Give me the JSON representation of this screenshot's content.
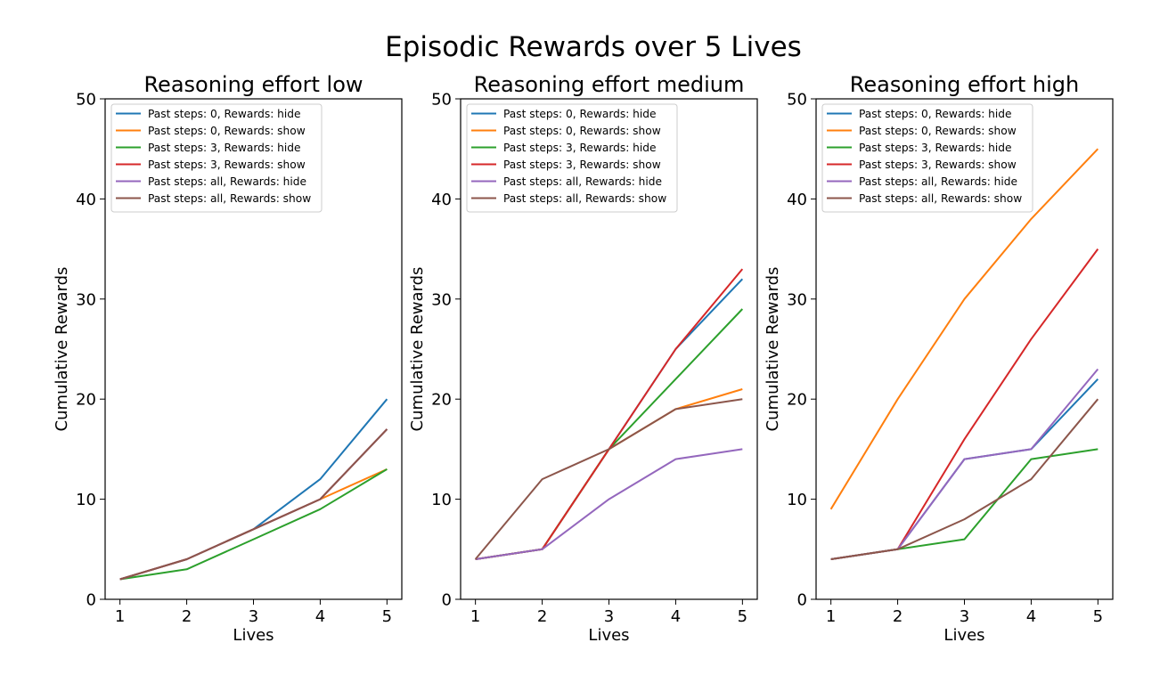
{
  "figure": {
    "suptitle": "Episodic Rewards over 5 Lives"
  },
  "legend_placement": "top-left",
  "series_colors": [
    "#1f77b4",
    "#ff7f0e",
    "#2ca02c",
    "#d62728",
    "#9467bd",
    "#8c564b"
  ],
  "chart_data": [
    {
      "type": "line",
      "title": "Reasoning effort low",
      "xlabel": "Lives",
      "ylabel": "Cumulative Rewards",
      "x": [
        1,
        2,
        3,
        4,
        5
      ],
      "xticks": [
        "1",
        "2",
        "3",
        "4",
        "5"
      ],
      "yticks": [
        "0",
        "10",
        "20",
        "30",
        "40",
        "50"
      ],
      "ylim": [
        0,
        50
      ],
      "grid": false,
      "legend": "top-left",
      "series": [
        {
          "name": "Past steps: 0, Rewards: hide",
          "values": [
            2,
            4,
            7,
            12,
            20
          ]
        },
        {
          "name": "Past steps: 0, Rewards: show",
          "values": [
            2,
            4,
            7,
            10,
            13
          ]
        },
        {
          "name": "Past steps: 3, Rewards: hide",
          "values": [
            2,
            3,
            6,
            9,
            13
          ]
        },
        {
          "name": "Past steps: 3, Rewards: show",
          "values": [
            2,
            4,
            7,
            10,
            17
          ]
        },
        {
          "name": "Past steps: all, Rewards: hide",
          "values": [
            2,
            4,
            7,
            10,
            17
          ]
        },
        {
          "name": "Past steps: all, Rewards: show",
          "values": [
            2,
            4,
            7,
            10,
            17
          ]
        }
      ]
    },
    {
      "type": "line",
      "title": "Reasoning effort medium",
      "xlabel": "Lives",
      "ylabel": "Cumulative Rewards",
      "x": [
        1,
        2,
        3,
        4,
        5
      ],
      "xticks": [
        "1",
        "2",
        "3",
        "4",
        "5"
      ],
      "yticks": [
        "0",
        "10",
        "20",
        "30",
        "40",
        "50"
      ],
      "ylim": [
        0,
        50
      ],
      "grid": false,
      "legend": "top-left",
      "series": [
        {
          "name": "Past steps: 0, Rewards: hide",
          "values": [
            4,
            5,
            15,
            25,
            32
          ]
        },
        {
          "name": "Past steps: 0, Rewards: show",
          "values": [
            4,
            5,
            15,
            19,
            21
          ]
        },
        {
          "name": "Past steps: 3, Rewards: hide",
          "values": [
            4,
            5,
            15,
            22,
            29
          ]
        },
        {
          "name": "Past steps: 3, Rewards: show",
          "values": [
            4,
            5,
            15,
            25,
            33
          ]
        },
        {
          "name": "Past steps: all, Rewards: hide",
          "values": [
            4,
            5,
            10,
            14,
            15
          ]
        },
        {
          "name": "Past steps: all, Rewards: show",
          "values": [
            4,
            12,
            15,
            19,
            20
          ]
        }
      ]
    },
    {
      "type": "line",
      "title": "Reasoning effort high",
      "xlabel": "Lives",
      "ylabel": "Cumulative Rewards",
      "x": [
        1,
        2,
        3,
        4,
        5
      ],
      "xticks": [
        "1",
        "2",
        "3",
        "4",
        "5"
      ],
      "yticks": [
        "0",
        "10",
        "20",
        "30",
        "40",
        "50"
      ],
      "ylim": [
        0,
        50
      ],
      "grid": false,
      "legend": "top-left",
      "series": [
        {
          "name": "Past steps: 0, Rewards: hide",
          "values": [
            4,
            5,
            14,
            15,
            22
          ]
        },
        {
          "name": "Past steps: 0, Rewards: show",
          "values": [
            9,
            20,
            30,
            38,
            45
          ]
        },
        {
          "name": "Past steps: 3, Rewards: hide",
          "values": [
            4,
            5,
            6,
            14,
            15
          ]
        },
        {
          "name": "Past steps: 3, Rewards: show",
          "values": [
            4,
            5,
            16,
            26,
            35
          ]
        },
        {
          "name": "Past steps: all, Rewards: hide",
          "values": [
            4,
            5,
            14,
            15,
            23
          ]
        },
        {
          "name": "Past steps: all, Rewards: show",
          "values": [
            4,
            5,
            8,
            12,
            20
          ]
        }
      ]
    }
  ]
}
